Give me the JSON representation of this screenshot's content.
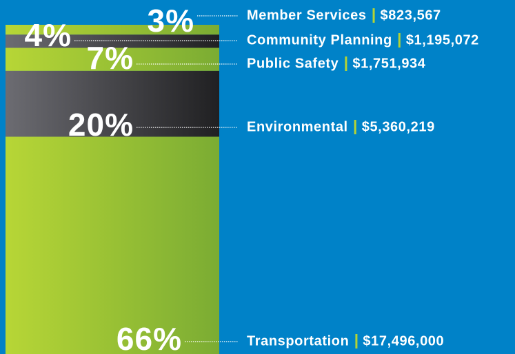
{
  "chart_data": {
    "type": "stacked-bar",
    "categories": [
      "Member Services",
      "Community Planning",
      "Public Safety",
      "Environmental",
      "Transportation"
    ],
    "values": [
      3,
      4,
      7,
      20,
      66
    ],
    "value_labels": [
      "3%",
      "4%",
      "7%",
      "20%",
      "66%"
    ],
    "amount_labels": [
      "$823,567",
      "$1,195,072",
      "$1,751,934",
      "$5,360,219",
      "$17,496,000"
    ],
    "colors": [
      "green",
      "dark",
      "green",
      "dark",
      "green"
    ],
    "separator_color": "#b5d334"
  }
}
